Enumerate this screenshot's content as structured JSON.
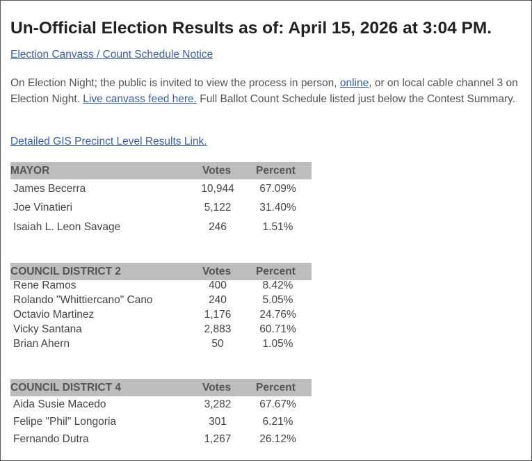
{
  "page": {
    "title": "Un-Official Election Results as of: April 15, 2026 at 3:04 PM.",
    "notice_link": "Election Canvass / Count Schedule Notice ",
    "para_text1": "On Election Night; the public is invited to view the process in person, ",
    "para_link_online": "online",
    "para_text2": ",  or on local cable channel 3 on Election Night. ",
    "para_link_live": "Live canvass feed here.",
    "para_text3": " Full Ballot Count Schedule listed just below the Contest Summary.",
    "gis_link": "Detailed GIS Precinct Level Results Link."
  },
  "colors": {
    "link": "#3a5fa3",
    "header_bg": "#bdbdbd"
  },
  "races": [
    {
      "office": "MAYOR",
      "votes_label": "Votes",
      "percent_label": "Percent",
      "candidates": [
        {
          "name": "James Becerra",
          "votes": "10,944",
          "percent": "67.09%"
        },
        {
          "name": "Joe Vinatieri",
          "votes": "5,122",
          "percent": "31.40%"
        },
        {
          "name": "Isaiah L. Leon Savage",
          "votes": "246",
          "percent": "1.51%"
        }
      ]
    },
    {
      "office": "COUNCIL DISTRICT 2",
      "votes_label": "Votes",
      "percent_label": "Percent",
      "candidates": [
        {
          "name": "Rene Ramos",
          "votes": "400",
          "percent": "8.42%"
        },
        {
          "name": "Rolando \"Whittiercano\" Cano",
          "votes": "240",
          "percent": "5.05%"
        },
        {
          "name": "Octavio Martinez",
          "votes": "1,176",
          "percent": "24.76%"
        },
        {
          "name": "Vicky Santana",
          "votes": "2,883",
          "percent": "60.71%"
        },
        {
          "name": "Brian Ahern",
          "votes": "50",
          "percent": "1.05%"
        }
      ]
    },
    {
      "office": "COUNCIL DISTRICT 4",
      "votes_label": "Votes",
      "percent_label": "Percent",
      "candidates": [
        {
          "name": "Aida Susie Macedo",
          "votes": "3,282",
          "percent": "67.67%"
        },
        {
          "name": "Felipe \"Phil\" Longoria",
          "votes": "301",
          "percent": "6.21%"
        },
        {
          "name": "Fernando Dutra",
          "votes": "1,267",
          "percent": "26.12%"
        }
      ]
    }
  ]
}
